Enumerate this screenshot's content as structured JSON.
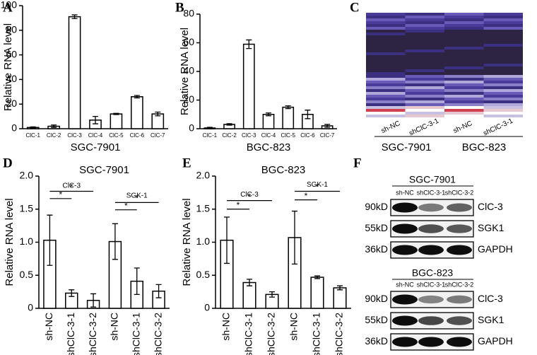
{
  "panel_labels": [
    "A",
    "B",
    "C",
    "D",
    "E",
    "F"
  ],
  "chart_data": [
    {
      "type": "bar",
      "xlabel": "SGC-7901",
      "ylabel": "Relative RNA level",
      "categories": [
        "ClC-1",
        "ClC-2",
        "ClC-3",
        "ClC-4",
        "ClC-5",
        "ClC-6",
        "ClC-7"
      ],
      "values": [
        1,
        2,
        91,
        7,
        12,
        26,
        12
      ],
      "errors": [
        0.5,
        1,
        1.5,
        3,
        0.5,
        1,
        1.5
      ],
      "color": "#ffffff",
      "ylim": [
        0,
        100
      ],
      "yticks": [
        0,
        20,
        40,
        60,
        80,
        100
      ]
    },
    {
      "type": "bar",
      "xlabel": "BGC-823",
      "ylabel": "Relative RNA level",
      "categories": [
        "ClC-1",
        "ClC-2",
        "ClC-3",
        "ClC-4",
        "ClC-5",
        "ClC-6",
        "ClC-7"
      ],
      "values": [
        0.5,
        3,
        59,
        10,
        15,
        10,
        2
      ],
      "errors": [
        0.5,
        0.5,
        3,
        1,
        1,
        3,
        1
      ],
      "color": "#ffffff",
      "ylim": [
        0,
        80
      ],
      "yticks": [
        0,
        20,
        40,
        60,
        80
      ]
    },
    {
      "type": "bar",
      "title": "SGC-7901",
      "ylabel": "Relative RNA level",
      "categories": [
        "sh-NC",
        "shClC-3-1",
        "shClC-3-2",
        "sh-NC",
        "shClC-3-1",
        "shClC-3-2"
      ],
      "values": [
        1.03,
        0.23,
        0.12,
        1.01,
        0.41,
        0.26
      ],
      "errors": [
        0.38,
        0.05,
        0.1,
        0.27,
        0.2,
        0.1
      ],
      "color": "#ffffff",
      "ylim": [
        0,
        2
      ],
      "yticks": [
        0,
        0.5,
        {
          "value": 1,
          "label": "1.0"
        },
        1.5,
        {
          "value": 2,
          "label": "2.0"
        }
      ],
      "annotations": [
        "ClC-3",
        "*",
        "*",
        "SGK-1",
        "*",
        "*"
      ]
    },
    {
      "type": "bar",
      "title": "BGC-823",
      "ylabel": "Relative RNA level",
      "categories": [
        "sh-NC",
        "shClC-3-1",
        "shClC-3-2",
        "sh-NC",
        "shClC-3-1",
        "shClC-3-2"
      ],
      "values": [
        1.03,
        0.39,
        0.21,
        1.07,
        0.47,
        0.31
      ],
      "errors": [
        0.35,
        0.05,
        0.04,
        0.4,
        0.02,
        0.03
      ],
      "color": "#ffffff",
      "ylim": [
        0,
        2
      ],
      "yticks": [
        0,
        0.5,
        {
          "value": 1,
          "label": "1.0"
        },
        1.5,
        {
          "value": 2,
          "label": "2.0"
        }
      ],
      "annotations": [
        "ClC-3",
        "*",
        "*",
        "SGK-1",
        "*",
        "*"
      ]
    }
  ],
  "heatmap": {
    "lanes": [
      "sh-NC",
      "shClC-3-1",
      "sh-NC",
      "shClC-3-1"
    ],
    "groups": [
      "SGC-7901",
      "BGC-823"
    ]
  },
  "blots": [
    {
      "title": "SGC-7901",
      "lanes": [
        "sh-NC",
        "shClC-3-1",
        "shClC-3-2"
      ],
      "rows": [
        {
          "size": "90kD",
          "protein": "ClC-3"
        },
        {
          "size": "55kD",
          "protein": "SGK1"
        },
        {
          "size": "36kD",
          "protein": "GAPDH"
        }
      ]
    },
    {
      "title": "BGC-823",
      "lanes": [
        "sh-NC",
        "shClC-3-1",
        "shClC-3-2"
      ],
      "rows": [
        {
          "size": "90kD",
          "protein": "ClC-3"
        },
        {
          "size": "55kD",
          "protein": "SGK1"
        },
        {
          "size": "36kD",
          "protein": "GAPDH"
        }
      ]
    }
  ]
}
